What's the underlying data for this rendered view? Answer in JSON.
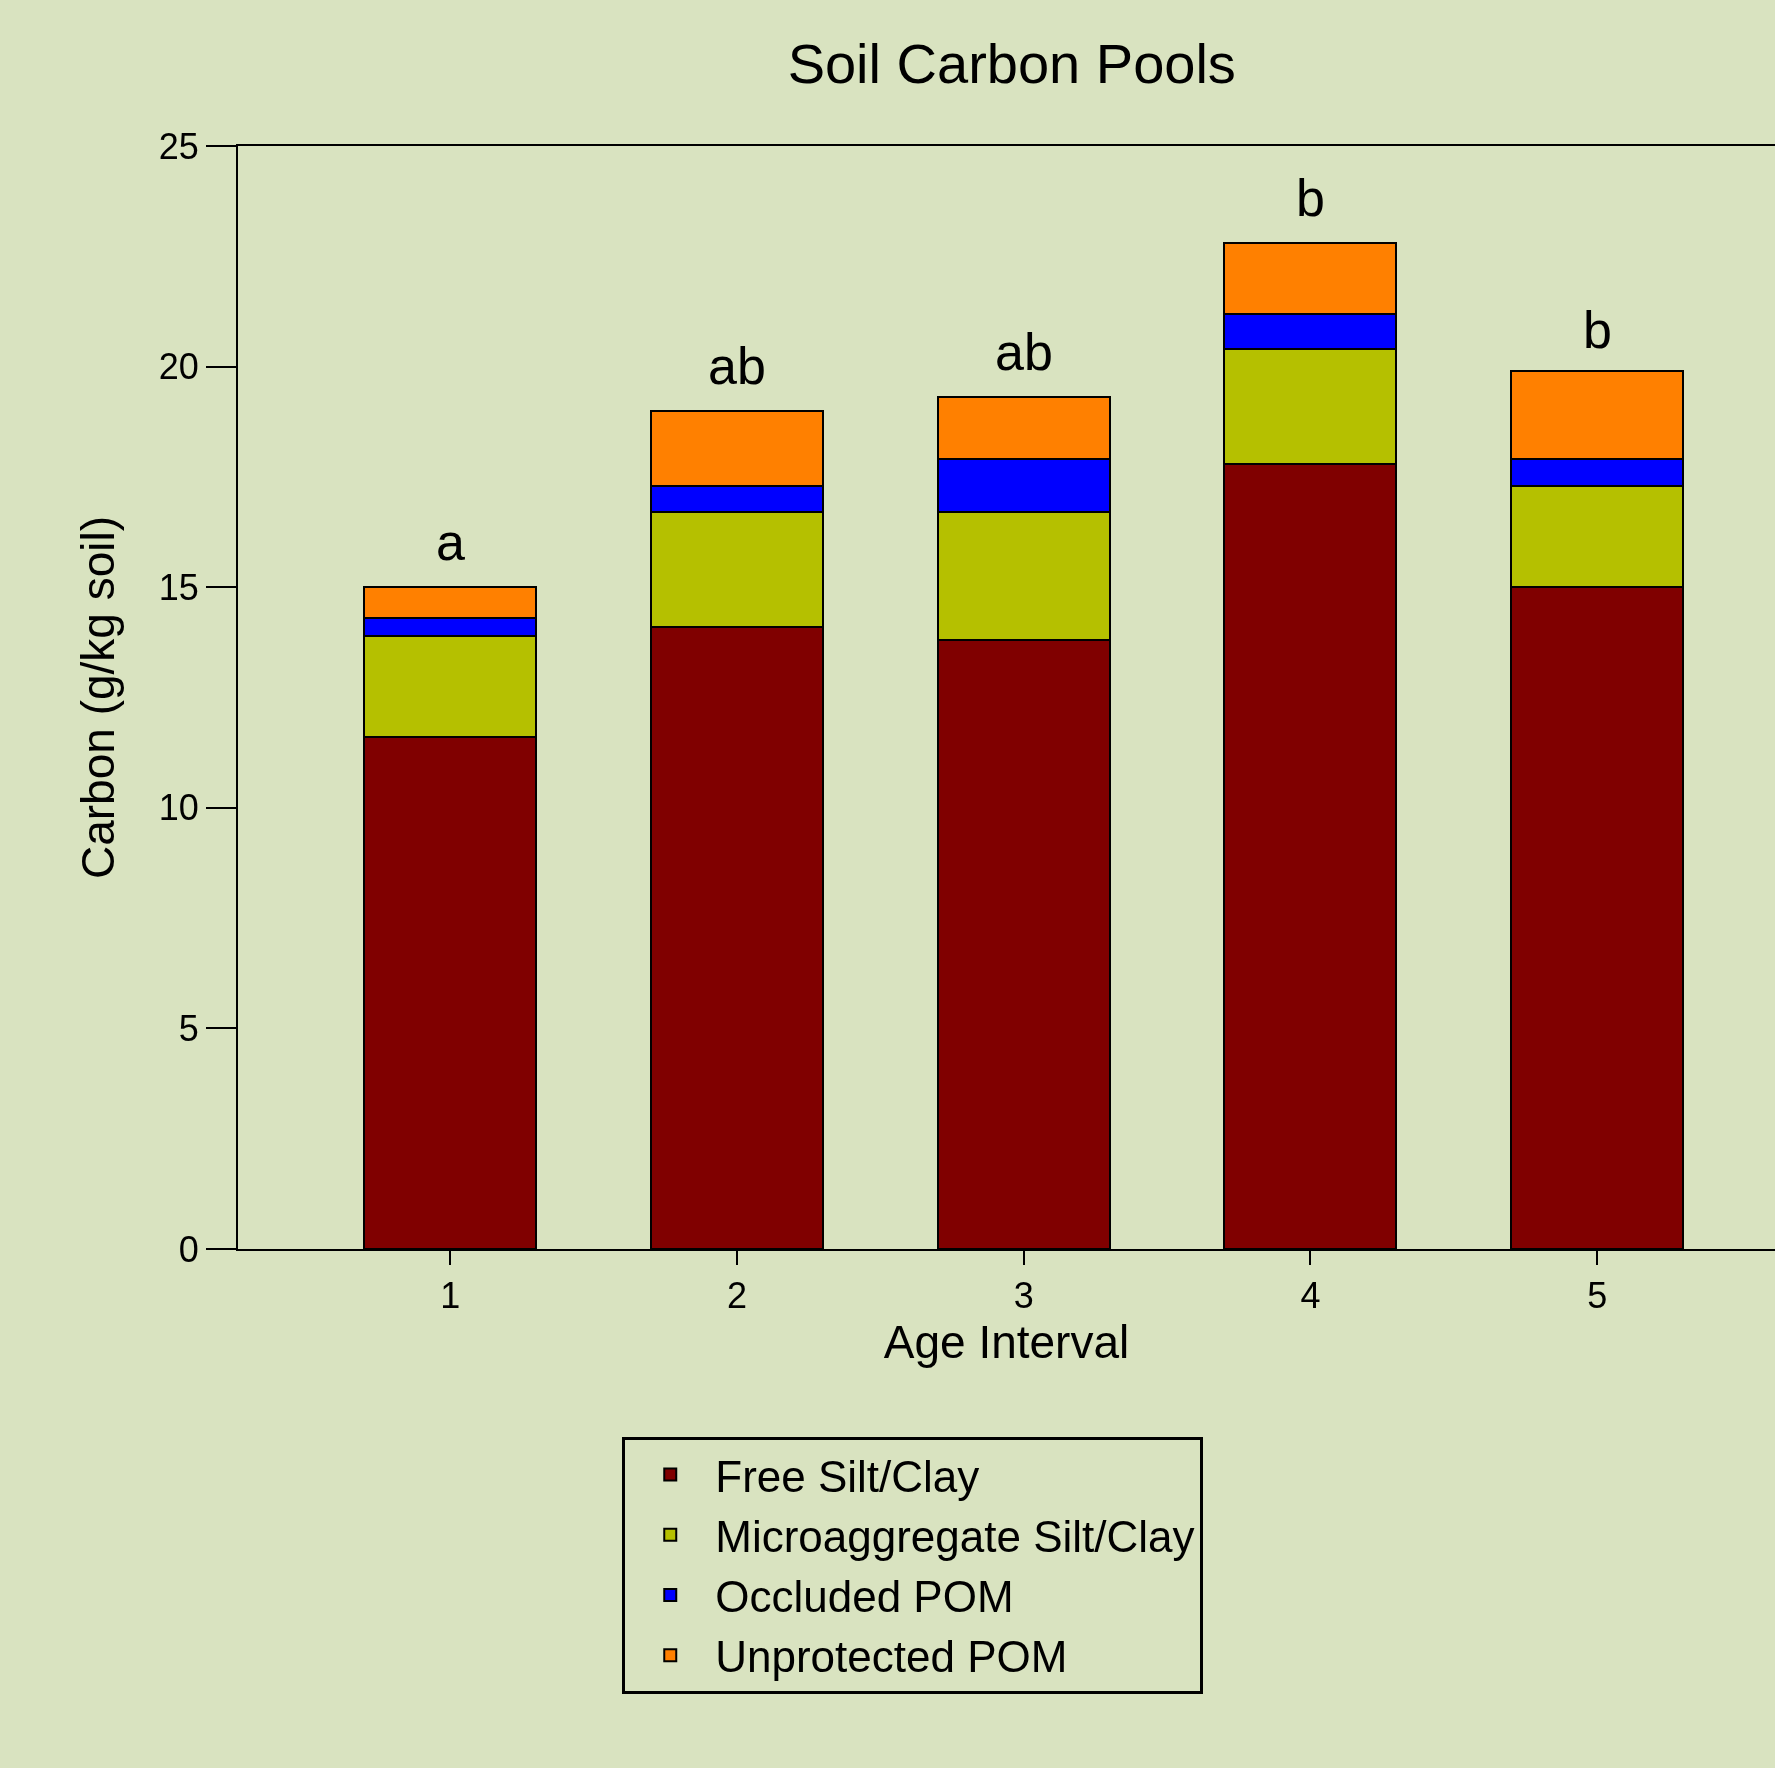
{
  "chart_data": {
    "type": "bar",
    "title": "Soil Carbon Pools",
    "xlabel": "Age Interval",
    "ylabel": "Carbon (g/kg soil)",
    "categories": [
      "1",
      "2",
      "3",
      "4",
      "5"
    ],
    "stacked": true,
    "series": [
      {
        "name": "Free Silt/Clay",
        "color": "#800000",
        "values": [
          11.6,
          14.1,
          13.8,
          17.8,
          15.0
        ]
      },
      {
        "name": "Microaggregate Silt/Clay",
        "color": "#b5c000",
        "values": [
          2.3,
          2.6,
          2.9,
          2.6,
          2.3
        ]
      },
      {
        "name": "Occluded POM",
        "color": "#0000ff",
        "values": [
          0.4,
          0.6,
          1.2,
          0.8,
          0.6
        ]
      },
      {
        "name": "Unprotected POM",
        "color": "#ff8000",
        "values": [
          0.7,
          1.7,
          1.4,
          1.6,
          2.0
        ]
      }
    ],
    "ylim": [
      0,
      25
    ],
    "yticks": [
      0,
      5,
      10,
      15,
      20,
      25
    ],
    "grid": false,
    "legend": "bottom",
    "annotations": [
      {
        "text": "a",
        "x": "1",
        "y": 15.0
      },
      {
        "text": "ab",
        "x": "2",
        "y": 19.0
      },
      {
        "text": "ab",
        "x": "3",
        "y": 19.3
      },
      {
        "text": "b",
        "x": "4",
        "y": 22.8
      },
      {
        "text": "b",
        "x": "5",
        "y": 19.8
      }
    ]
  }
}
